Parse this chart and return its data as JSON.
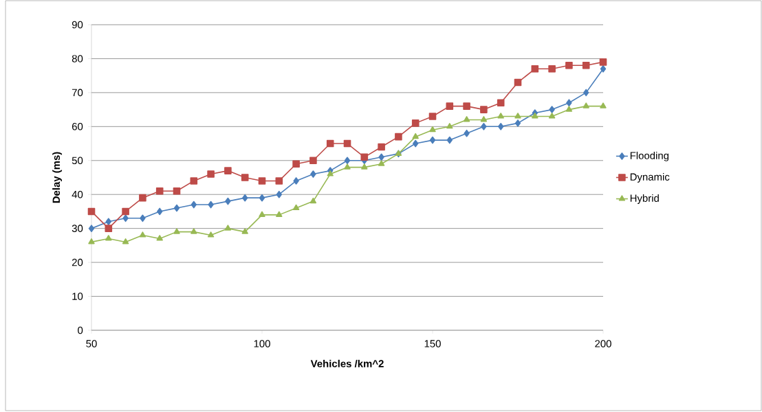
{
  "chart_data": {
    "type": "line",
    "xlabel": "Vehicles /km^2",
    "ylabel": "Delay (ms)",
    "x": [
      50,
      55,
      60,
      65,
      70,
      75,
      80,
      85,
      90,
      95,
      100,
      105,
      110,
      115,
      120,
      125,
      130,
      135,
      140,
      145,
      150,
      155,
      160,
      165,
      170,
      175,
      180,
      185,
      190,
      195,
      200
    ],
    "series": [
      {
        "name": "Flooding",
        "color": "#4a7ebb",
        "marker": "diamond",
        "values": [
          30,
          32,
          33,
          33,
          35,
          36,
          37,
          37,
          38,
          39,
          39,
          40,
          44,
          46,
          47,
          50,
          50,
          51,
          52,
          55,
          56,
          56,
          58,
          60,
          60,
          61,
          64,
          65,
          67,
          70,
          77
        ]
      },
      {
        "name": "Dynamic",
        "color": "#be4b48",
        "marker": "square",
        "values": [
          35,
          30,
          35,
          39,
          41,
          41,
          44,
          46,
          47,
          45,
          44,
          44,
          49,
          50,
          55,
          55,
          51,
          54,
          57,
          61,
          63,
          66,
          66,
          65,
          67,
          73,
          77,
          77,
          78,
          78,
          79
        ]
      },
      {
        "name": "Hybrid",
        "color": "#98b954",
        "marker": "triangle",
        "values": [
          26,
          27,
          26,
          28,
          27,
          29,
          29,
          28,
          30,
          29,
          34,
          34,
          36,
          38,
          46,
          48,
          48,
          49,
          52,
          57,
          59,
          60,
          62,
          62,
          63,
          63,
          63,
          63,
          65,
          66,
          66
        ]
      }
    ],
    "xlim": [
      50,
      200
    ],
    "xticks": [
      50,
      100,
      150,
      200
    ],
    "ylim": [
      0,
      90
    ],
    "yticks": [
      0,
      10,
      20,
      30,
      40,
      50,
      60,
      70,
      80,
      90
    ],
    "grid": "y",
    "legend": "right",
    "line_style": "solid"
  }
}
